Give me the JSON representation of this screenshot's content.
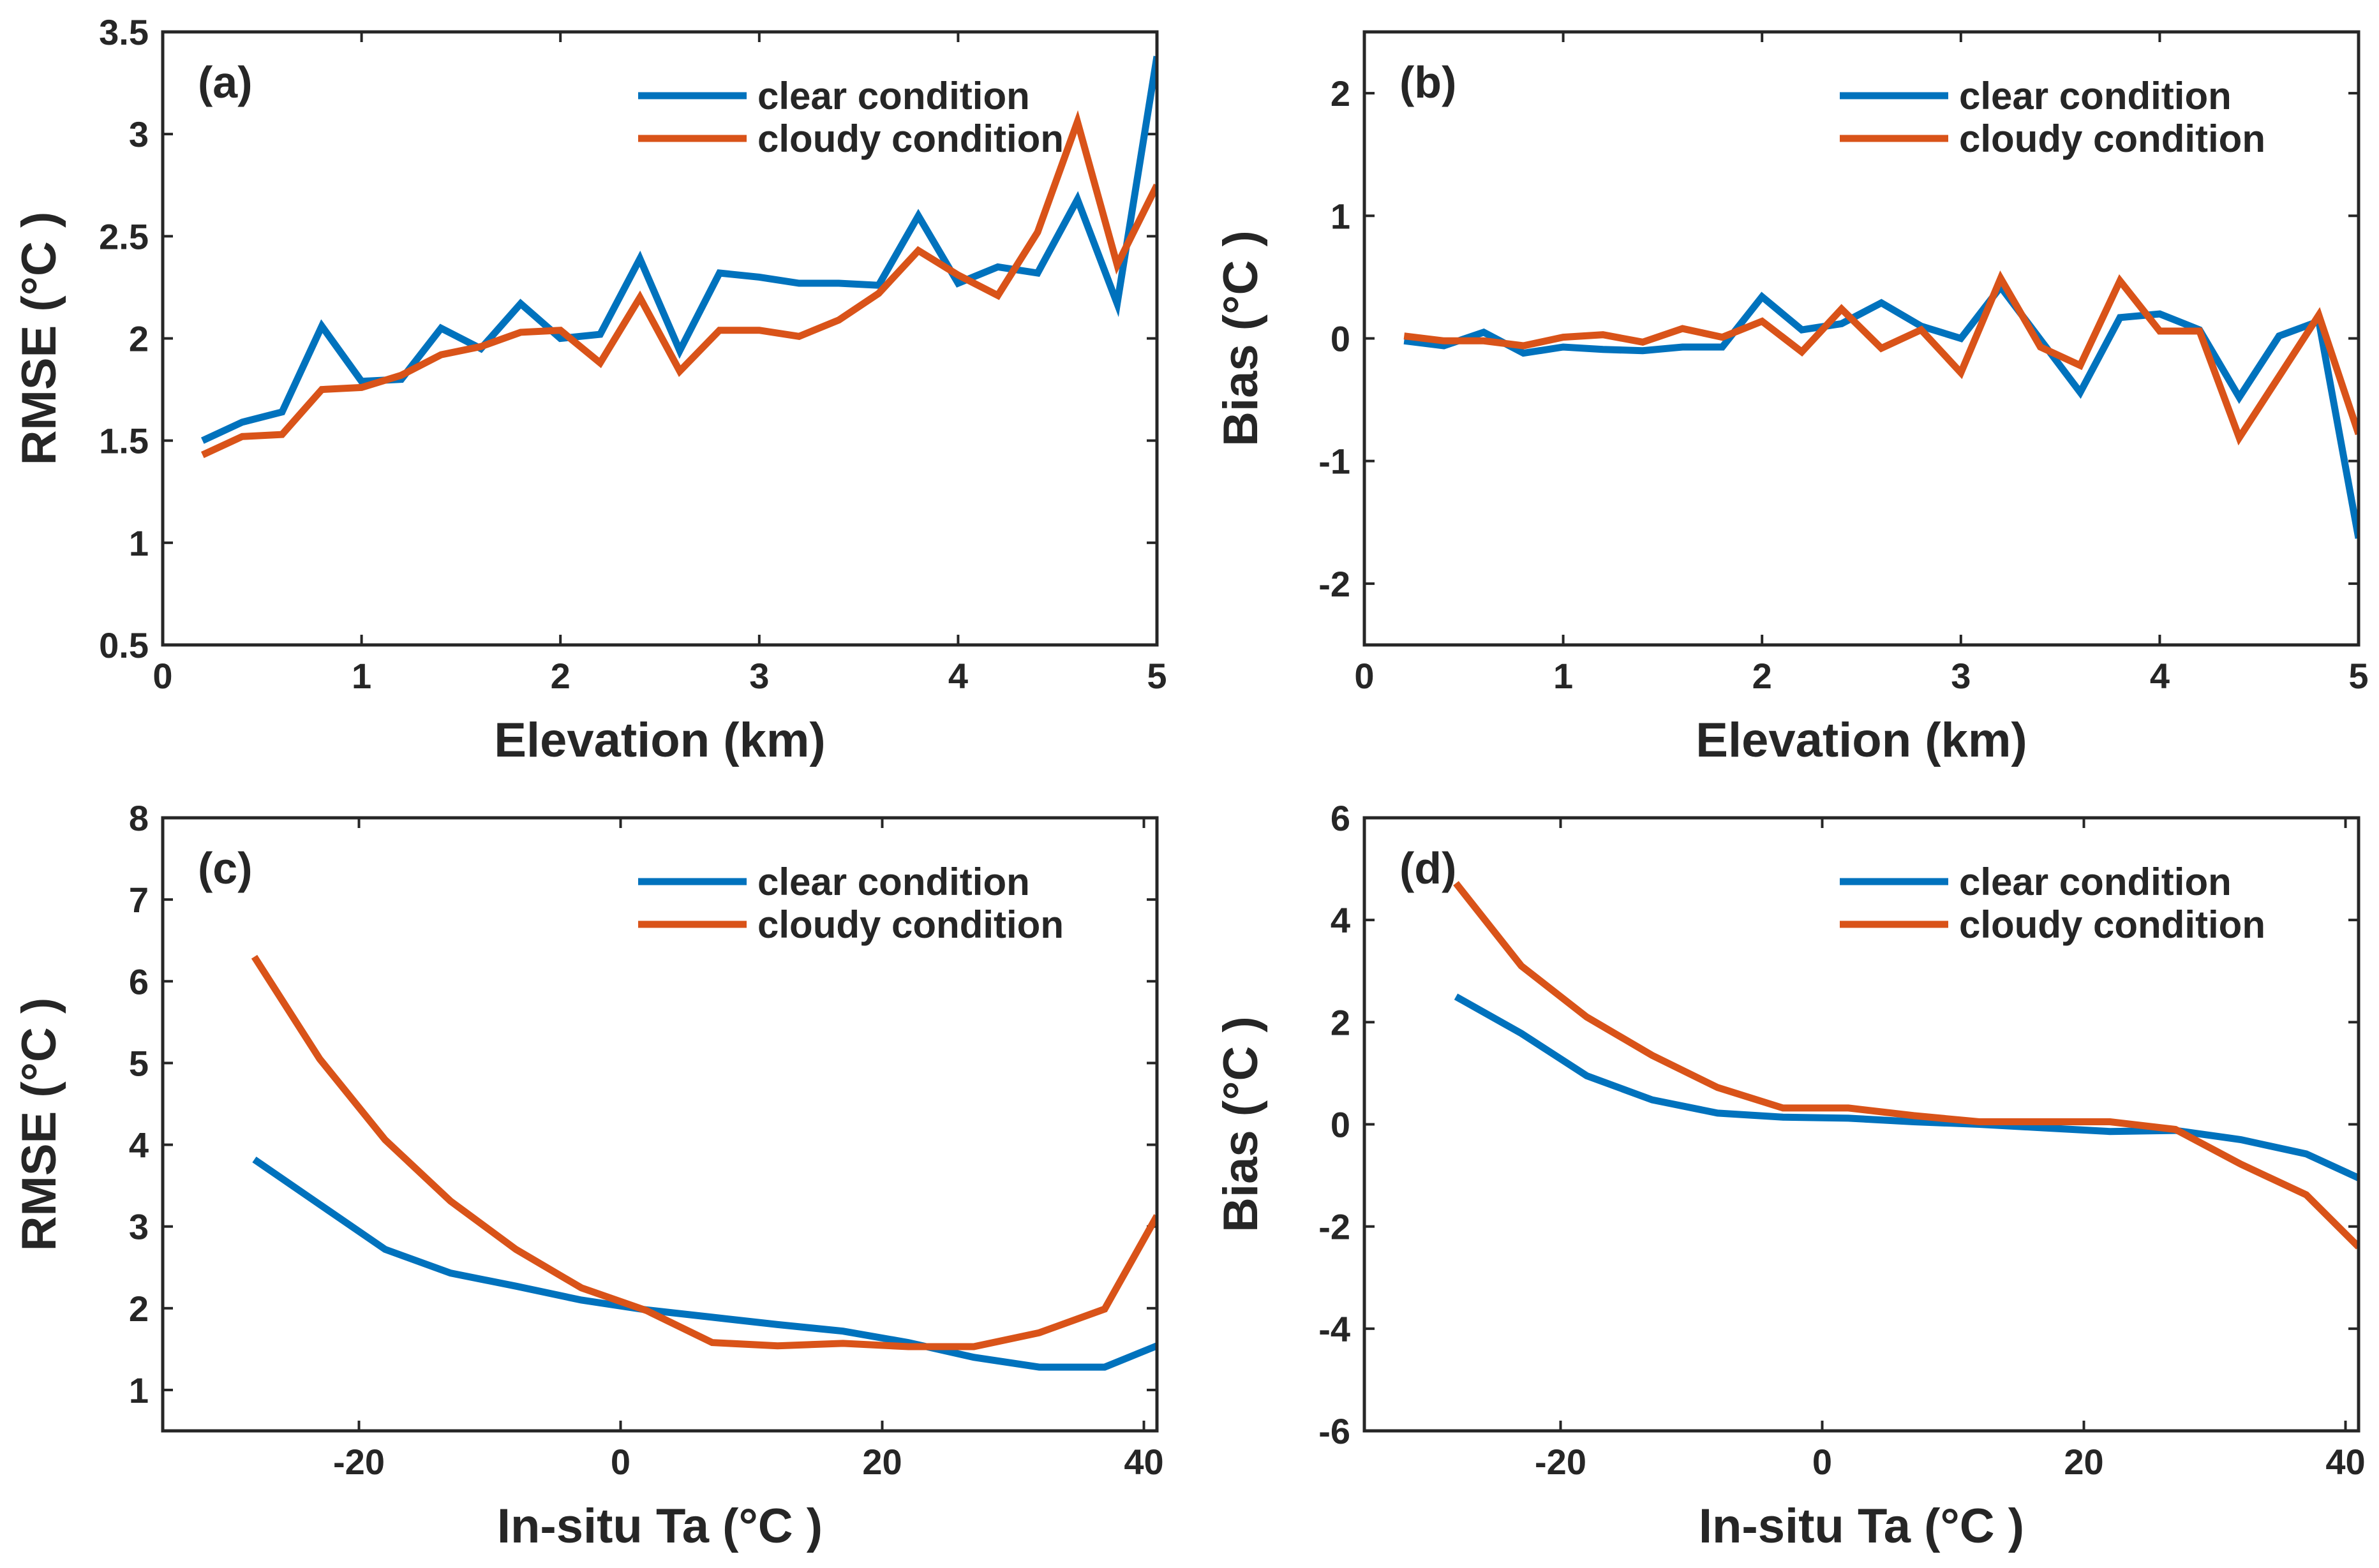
{
  "chart_data": [
    {
      "type": "line",
      "panel": "(a)",
      "xlabel": "Elevation (km)",
      "ylabel": "RMSE (°C )",
      "xlim": [
        0,
        5
      ],
      "ylim": [
        0.5,
        3.5
      ],
      "xticks": [
        0,
        1,
        2,
        3,
        4,
        5
      ],
      "xtick_labels": [
        "0",
        "1",
        "2",
        "3",
        "4",
        "5"
      ],
      "yticks": [
        0.5,
        1,
        1.5,
        2,
        2.5,
        3,
        3.5
      ],
      "ytick_labels": [
        "0.5",
        "1",
        "1.5",
        "2",
        "2.5",
        "3",
        "3.5"
      ],
      "legend_position": "top-right",
      "x": [
        0.2,
        0.4,
        0.6,
        0.8,
        1.0,
        1.2,
        1.4,
        1.6,
        1.8,
        2.0,
        2.2,
        2.4,
        2.6,
        2.8,
        3.0,
        3.2,
        3.4,
        3.6,
        3.8,
        4.0,
        4.2,
        4.4,
        4.6,
        4.8,
        5.0
      ],
      "series": [
        {
          "name": "clear condition",
          "color": "#0072BD",
          "values": [
            1.5,
            1.59,
            1.64,
            2.06,
            1.79,
            1.8,
            2.05,
            1.95,
            2.17,
            2.0,
            2.02,
            2.39,
            1.94,
            2.32,
            2.3,
            2.27,
            2.27,
            2.26,
            2.6,
            2.27,
            2.35,
            2.32,
            2.68,
            2.17,
            3.38
          ]
        },
        {
          "name": "cloudy condition",
          "color": "#D95319",
          "values": [
            1.43,
            1.52,
            1.53,
            1.75,
            1.76,
            1.82,
            1.92,
            1.96,
            2.03,
            2.04,
            1.88,
            2.2,
            1.84,
            2.04,
            2.04,
            2.01,
            2.09,
            2.22,
            2.43,
            2.31,
            2.21,
            2.52,
            3.06,
            2.36,
            2.75
          ]
        }
      ]
    },
    {
      "type": "line",
      "panel": "(b)",
      "xlabel": "Elevation (km)",
      "ylabel": "Bias (°C )",
      "xlim": [
        0,
        5
      ],
      "ylim": [
        -2.5,
        2.5
      ],
      "xticks": [
        0,
        1,
        2,
        3,
        4,
        5
      ],
      "xtick_labels": [
        "0",
        "1",
        "2",
        "3",
        "4",
        "5"
      ],
      "yticks": [
        -2,
        -1,
        0,
        1,
        2
      ],
      "ytick_labels": [
        "-2",
        "-1",
        "0",
        "1",
        "2"
      ],
      "legend_position": "top-right",
      "x": [
        0.2,
        0.4,
        0.6,
        0.8,
        1.0,
        1.2,
        1.4,
        1.6,
        1.8,
        2.0,
        2.2,
        2.4,
        2.6,
        2.8,
        3.0,
        3.2,
        3.4,
        3.6,
        3.8,
        4.0,
        4.2,
        4.4,
        4.6,
        4.8,
        5.0
      ],
      "series": [
        {
          "name": "clear condition",
          "color": "#0072BD",
          "values": [
            -0.02,
            -0.06,
            0.05,
            -0.12,
            -0.07,
            -0.09,
            -0.1,
            -0.07,
            -0.07,
            0.34,
            0.07,
            0.12,
            0.29,
            0.1,
            0.0,
            0.42,
            -0.01,
            -0.44,
            0.17,
            0.2,
            0.07,
            -0.48,
            0.02,
            0.14,
            -1.63
          ]
        },
        {
          "name": "cloudy condition",
          "color": "#D95319",
          "values": [
            0.02,
            -0.02,
            -0.02,
            -0.06,
            0.01,
            0.03,
            -0.03,
            0.08,
            0.01,
            0.14,
            -0.11,
            0.24,
            -0.08,
            0.07,
            -0.28,
            0.49,
            -0.07,
            -0.22,
            0.47,
            0.06,
            0.06,
            -0.81,
            -0.31,
            0.19,
            -0.78
          ]
        }
      ]
    },
    {
      "type": "line",
      "panel": "(c)",
      "xlabel": "In-situ Ta (°C )",
      "ylabel": "RMSE (°C )",
      "xlim": [
        -35,
        41
      ],
      "ylim": [
        0.5,
        8
      ],
      "xticks": [
        -20,
        0,
        20,
        40
      ],
      "xtick_labels": [
        "-20",
        "0",
        "20",
        "40"
      ],
      "yticks": [
        1,
        2,
        3,
        4,
        5,
        6,
        7,
        8
      ],
      "ytick_labels": [
        "1",
        "2",
        "3",
        "4",
        "5",
        "6",
        "7",
        "8"
      ],
      "legend_position": "top-right",
      "x": [
        -28,
        -23,
        -18,
        -13,
        -8,
        -3,
        2,
        7,
        12,
        17,
        22,
        27,
        32,
        37,
        41
      ],
      "series": [
        {
          "name": "clear condition",
          "color": "#0072BD",
          "values": [
            3.82,
            3.27,
            2.72,
            2.43,
            2.27,
            2.1,
            1.98,
            1.89,
            1.8,
            1.72,
            1.58,
            1.4,
            1.28,
            1.28,
            1.54
          ]
        },
        {
          "name": "cloudy condition",
          "color": "#D95319",
          "values": [
            6.3,
            5.05,
            4.06,
            3.31,
            2.72,
            2.25,
            1.97,
            1.58,
            1.54,
            1.57,
            1.53,
            1.53,
            1.7,
            1.99,
            3.13
          ]
        }
      ]
    },
    {
      "type": "line",
      "panel": "(d)",
      "xlabel": "In-situ Ta (°C )",
      "ylabel": "Bias (°C )",
      "xlim": [
        -35,
        41
      ],
      "ylim": [
        -6,
        6
      ],
      "xticks": [
        -20,
        0,
        20,
        40
      ],
      "xtick_labels": [
        "-20",
        "0",
        "20",
        "40"
      ],
      "yticks": [
        -6,
        -4,
        -2,
        0,
        2,
        4,
        6
      ],
      "ytick_labels": [
        "-6",
        "-4",
        "-2",
        "0",
        "2",
        "4",
        "6"
      ],
      "legend_position": "top-right",
      "x": [
        -28,
        -23,
        -18,
        -13,
        -8,
        -3,
        2,
        7,
        12,
        17,
        22,
        27,
        32,
        37,
        41
      ],
      "series": [
        {
          "name": "clear condition",
          "color": "#0072BD",
          "values": [
            2.5,
            1.78,
            0.95,
            0.48,
            0.22,
            0.14,
            0.12,
            0.05,
            0.0,
            -0.07,
            -0.14,
            -0.12,
            -0.3,
            -0.58,
            -1.05
          ]
        },
        {
          "name": "cloudy condition",
          "color": "#D95319",
          "values": [
            4.72,
            3.1,
            2.1,
            1.35,
            0.72,
            0.32,
            0.32,
            0.17,
            0.05,
            0.05,
            0.05,
            -0.1,
            -0.78,
            -1.38,
            -2.4
          ]
        }
      ]
    }
  ]
}
